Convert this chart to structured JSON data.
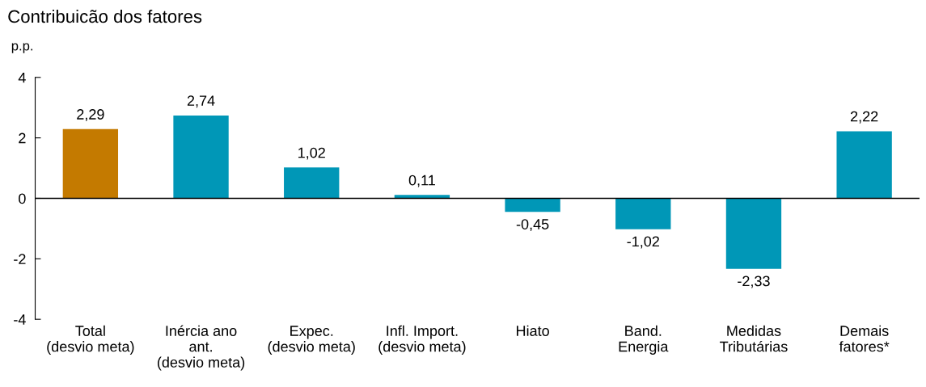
{
  "chart_data": {
    "type": "bar",
    "title": "Contribuicão dos fatores",
    "ylabel": "p.p.",
    "categories": [
      "Total\n(desvio meta)",
      "Inércia ano\nant.\n(desvio meta)",
      "Expec.\n(desvio meta)",
      "Infl. Import.\n(desvio meta)",
      "Hiato",
      "Band.\nEnergia",
      "Medidas\nTributárias",
      "Demais\nfatores*"
    ],
    "values": [
      2.29,
      2.74,
      1.02,
      0.11,
      -0.45,
      -1.02,
      -2.33,
      2.22
    ],
    "value_labels": [
      "2,29",
      "2,74",
      "1,02",
      "0,11",
      "-0,45",
      "-1,02",
      "-2,33",
      "2,22"
    ],
    "colors": [
      "#c47a00",
      "#0097b7",
      "#0097b7",
      "#0097b7",
      "#0097b7",
      "#0097b7",
      "#0097b7",
      "#0097b7"
    ],
    "ylim": [
      -4,
      4
    ],
    "yticks": [
      -4,
      -2,
      0,
      2,
      4
    ],
    "grid": false,
    "legend": false,
    "ref_lines": [
      {
        "axis": "y",
        "value": 0,
        "color": "#000000",
        "line_style": "solid"
      }
    ]
  }
}
